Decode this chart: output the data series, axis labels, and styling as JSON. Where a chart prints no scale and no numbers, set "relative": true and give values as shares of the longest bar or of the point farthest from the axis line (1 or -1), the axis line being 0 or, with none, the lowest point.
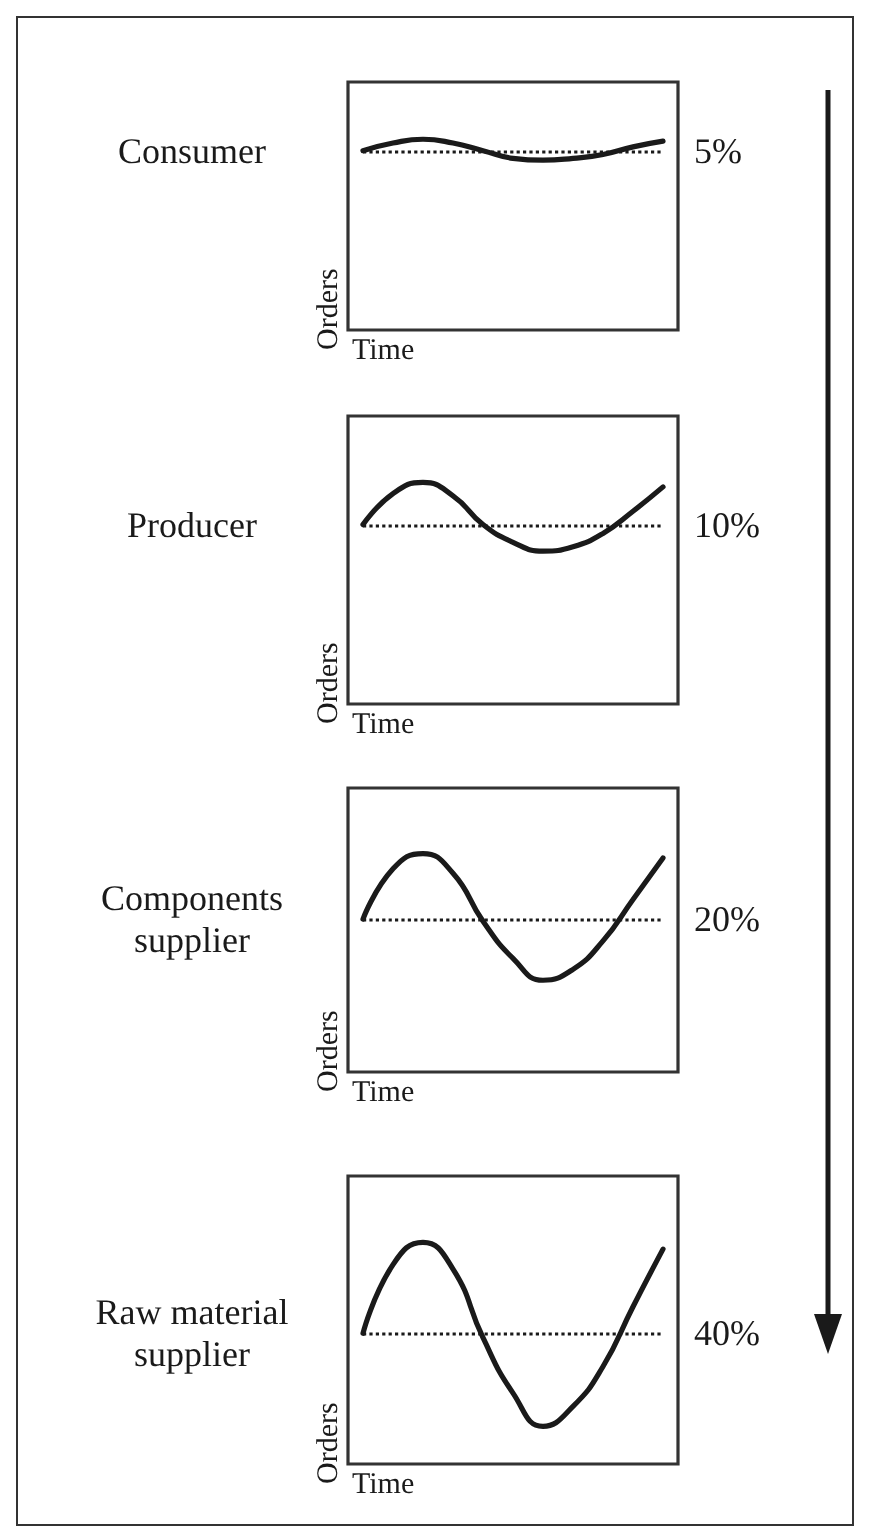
{
  "chart_data": [
    {
      "type": "line",
      "title": "Consumer",
      "xlabel": "Time",
      "ylabel": "Orders",
      "categories": [
        null,
        null,
        null,
        null,
        null,
        null,
        null,
        null,
        null,
        null,
        null
      ],
      "values": [
        0.94,
        0.98,
        1,
        0.98,
        0.94,
        0.9,
        0.89,
        0.9,
        0.92,
        0.96,
        0.99
      ],
      "color": "#1a1a1a",
      "relative": true,
      "ref_lines": [
        {
          "axis": "y",
          "value": 0.94,
          "line_style": "dotted",
          "color": "#1a1a1a"
        }
      ],
      "annotations": [
        "5%"
      ],
      "grid": false,
      "marker": "none",
      "line_style": "solid"
    },
    {
      "type": "line",
      "title": "Producer",
      "xlabel": "Time",
      "ylabel": "Orders",
      "categories": [
        null,
        null,
        null,
        null,
        null,
        null,
        null,
        null,
        null,
        null,
        null
      ],
      "values": [
        0.81,
        0.95,
        1,
        0.94,
        0.81,
        0.73,
        0.69,
        0.71,
        0.77,
        0.87,
        0.98
      ],
      "color": "#1a1a1a",
      "relative": true,
      "ref_lines": [
        {
          "axis": "y",
          "value": 0.81,
          "line_style": "dotted",
          "color": "#1a1a1a"
        }
      ],
      "annotations": [
        "10%"
      ],
      "grid": false,
      "marker": "none",
      "line_style": "solid"
    },
    {
      "type": "line",
      "title": "Components\nsupplier",
      "xlabel": "Time",
      "ylabel": "Orders",
      "categories": [
        null,
        null,
        null,
        null,
        null,
        null,
        null,
        null,
        null,
        null,
        null
      ],
      "values": [
        0.7,
        0.93,
        1,
        0.91,
        0.69,
        0.52,
        0.42,
        0.47,
        0.6,
        0.79,
        0.98
      ],
      "color": "#1a1a1a",
      "relative": true,
      "ref_lines": [
        {
          "axis": "y",
          "value": 0.7,
          "line_style": "dotted",
          "color": "#1a1a1a"
        }
      ],
      "annotations": [
        "20%"
      ],
      "grid": false,
      "marker": "none",
      "line_style": "solid"
    },
    {
      "type": "line",
      "title": "Raw material\nsupplier",
      "xlabel": "Time",
      "ylabel": "Orders",
      "categories": [
        null,
        null,
        null,
        null,
        null,
        null,
        null,
        null,
        null,
        null,
        null
      ],
      "values": [
        0.59,
        0.9,
        1,
        0.88,
        0.57,
        0.32,
        0.17,
        0.26,
        0.44,
        0.71,
        0.97
      ],
      "color": "#1a1a1a",
      "relative": true,
      "ref_lines": [
        {
          "axis": "y",
          "value": 0.59,
          "line_style": "dotted",
          "color": "#1a1a1a"
        }
      ],
      "annotations": [
        "40%"
      ],
      "grid": false,
      "marker": "none",
      "line_style": "solid"
    }
  ]
}
